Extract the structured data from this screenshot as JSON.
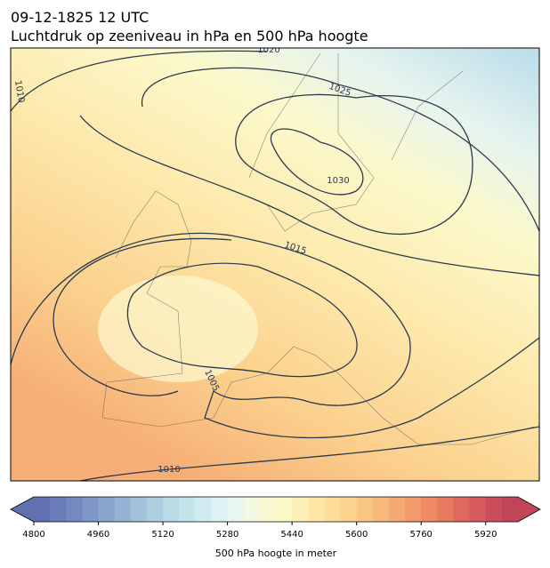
{
  "header": {
    "title": "09-12-1825 12 UTC",
    "subtitle": "Luchtdruk op zeeniveau in hPa en 500 hPa hoogte"
  },
  "map": {
    "contour_labels": [
      "1020",
      "1010",
      "1025",
      "1030",
      "1015",
      "1005",
      "1010"
    ]
  },
  "colorbar": {
    "label": "500 hPa hoogte in meter",
    "range": [
      4800,
      6000
    ],
    "ticks": [
      4800,
      4960,
      5120,
      5280,
      5440,
      5600,
      5760,
      5920
    ],
    "colors": [
      "#6170b0",
      "#6a7db8",
      "#7489bf",
      "#7e97c6",
      "#89a6cd",
      "#95b4d4",
      "#a1c2da",
      "#add0e0",
      "#b8dbe6",
      "#c4e4ec",
      "#d0ecf1",
      "#dcf2f3",
      "#e8f6f0",
      "#f2f8e2",
      "#f8f9d2",
      "#fcf8c6",
      "#fdf1b8",
      "#fde8a8",
      "#fcde9a",
      "#fbd38e",
      "#f9c684",
      "#f8b87b",
      "#f6aa73",
      "#f39a6c",
      "#ee8a66",
      "#e87a62",
      "#e0695f",
      "#d65a5d",
      "#cc4d5b",
      "#c04559"
    ]
  }
}
